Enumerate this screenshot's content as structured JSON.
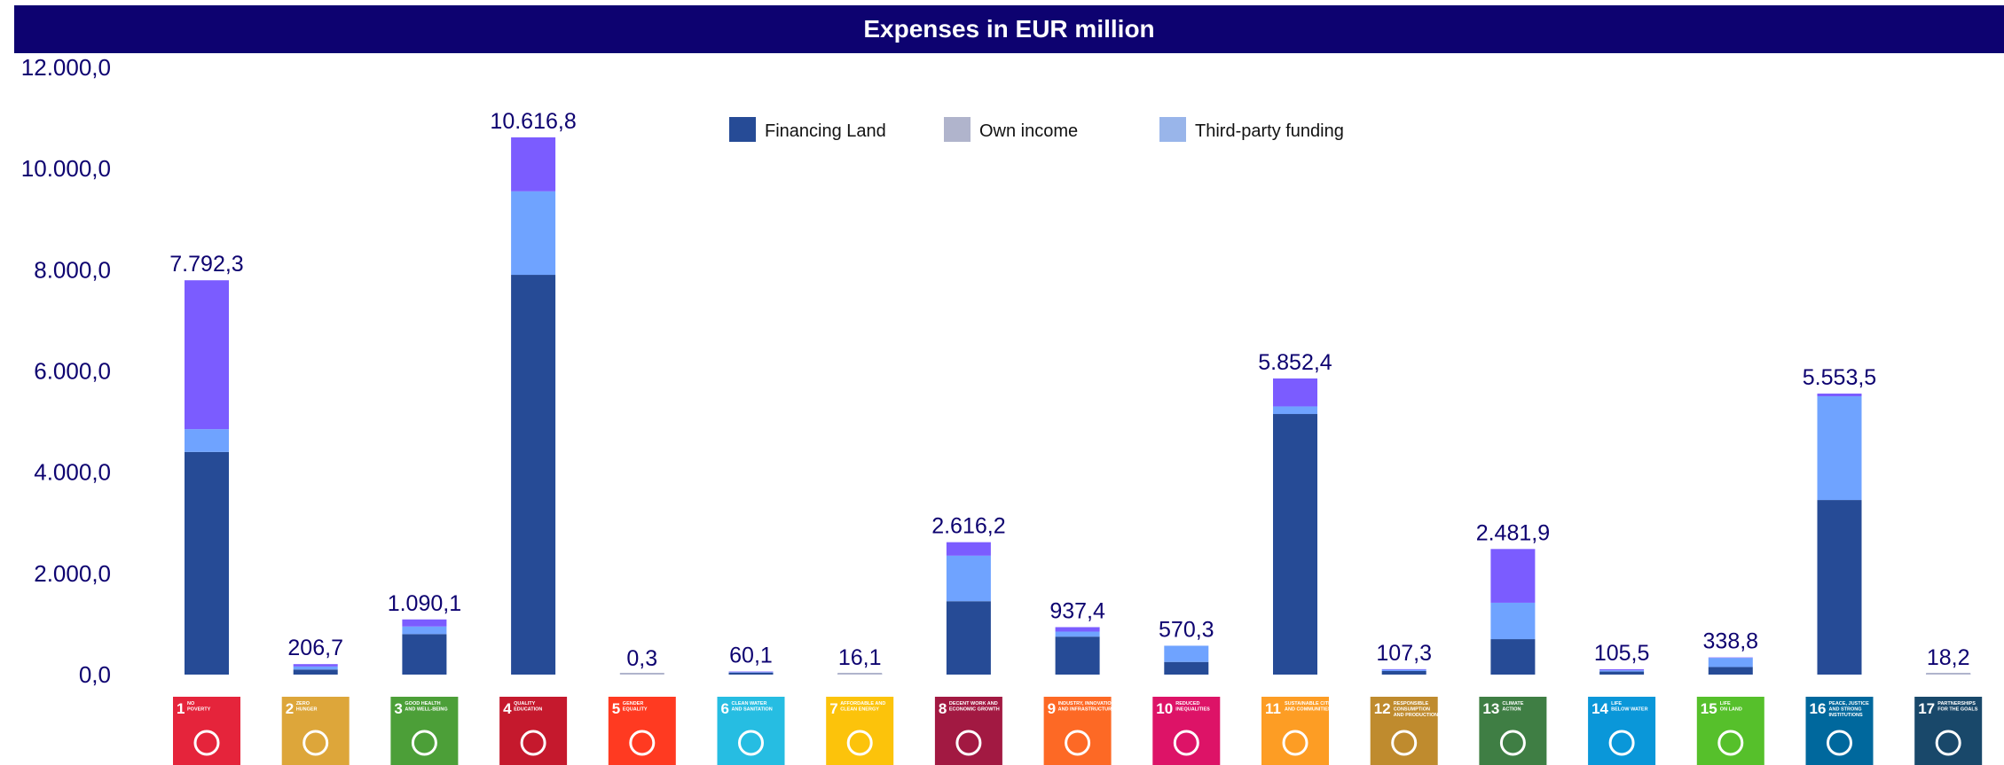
{
  "header": {
    "title": "Expenses in EUR million"
  },
  "chart_data": {
    "type": "bar",
    "stacked": true,
    "title": "Expenses in EUR million",
    "xlabel": "",
    "ylabel": "",
    "ylim": [
      0,
      12000
    ],
    "yticks": [
      0,
      2000,
      4000,
      6000,
      8000,
      10000,
      12000
    ],
    "ytick_labels": [
      "0,0",
      "2.000,0",
      "4.000,0",
      "6.000,0",
      "8.000,0",
      "10.000,0",
      "12.000,0"
    ],
    "grid": false,
    "legend_position": "top-center",
    "categories": [
      "1",
      "2",
      "3",
      "4",
      "5",
      "6",
      "7",
      "8",
      "9",
      "10",
      "11",
      "12",
      "13",
      "14",
      "15",
      "16",
      "17"
    ],
    "category_icons": [
      {
        "number": "1",
        "lines": [
          "NO",
          "POVERTY"
        ],
        "color": "#e5243b"
      },
      {
        "number": "2",
        "lines": [
          "ZERO",
          "HUNGER"
        ],
        "color": "#dda63a"
      },
      {
        "number": "3",
        "lines": [
          "GOOD HEALTH",
          "AND WELL-BEING"
        ],
        "color": "#4c9f38"
      },
      {
        "number": "4",
        "lines": [
          "QUALITY",
          "EDUCATION"
        ],
        "color": "#c5192d"
      },
      {
        "number": "5",
        "lines": [
          "GENDER",
          "EQUALITY"
        ],
        "color": "#ff3a21"
      },
      {
        "number": "6",
        "lines": [
          "CLEAN WATER",
          "AND SANITATION"
        ],
        "color": "#26bde2"
      },
      {
        "number": "7",
        "lines": [
          "AFFORDABLE AND",
          "CLEAN ENERGY"
        ],
        "color": "#fcc30b"
      },
      {
        "number": "8",
        "lines": [
          "DECENT WORK AND",
          "ECONOMIC GROWTH"
        ],
        "color": "#a21942"
      },
      {
        "number": "9",
        "lines": [
          "INDUSTRY, INNOVATION",
          "AND INFRASTRUCTURE"
        ],
        "color": "#fd6925"
      },
      {
        "number": "10",
        "lines": [
          "REDUCED",
          "INEQUALITIES"
        ],
        "color": "#dd1367"
      },
      {
        "number": "11",
        "lines": [
          "SUSTAINABLE CITIES",
          "AND COMMUNITIES"
        ],
        "color": "#fd9d24"
      },
      {
        "number": "12",
        "lines": [
          "RESPONSIBLE",
          "CONSUMPTION",
          "AND PRODUCTION"
        ],
        "color": "#bf8b2e"
      },
      {
        "number": "13",
        "lines": [
          "CLIMATE",
          "ACTION"
        ],
        "color": "#3f7e44"
      },
      {
        "number": "14",
        "lines": [
          "LIFE",
          "BELOW WATER"
        ],
        "color": "#0a97d9"
      },
      {
        "number": "15",
        "lines": [
          "LIFE",
          "ON LAND"
        ],
        "color": "#56c02b"
      },
      {
        "number": "16",
        "lines": [
          "PEACE, JUSTICE",
          "AND STRONG",
          "INSTITUTIONS"
        ],
        "color": "#00689d"
      },
      {
        "number": "17",
        "lines": [
          "PARTNERSHIPS",
          "FOR THE GOALS"
        ],
        "color": "#19486a"
      }
    ],
    "series": [
      {
        "name": "Financing Land",
        "color": "#264b96",
        "values": [
          4400,
          100,
          800,
          7900,
          0.3,
          40,
          10,
          1450,
          750,
          250,
          5150,
          70,
          700,
          60,
          150,
          3450,
          10
        ]
      },
      {
        "name": "Third-party funding",
        "color": "#6fa3ff",
        "values": [
          450,
          60,
          150,
          1650,
          0,
          10,
          4,
          900,
          100,
          320,
          150,
          25,
          720,
          25,
          180,
          2050,
          5
        ]
      },
      {
        "name": "Own income",
        "color": "#7b5cff",
        "values": [
          2942.3,
          46.7,
          140.1,
          1066.8,
          0,
          10.1,
          2.1,
          266.2,
          87.4,
          0.3,
          552.4,
          12.3,
          1061.9,
          20.5,
          8.8,
          53.5,
          3.2
        ]
      }
    ],
    "legend": [
      {
        "label": "Financing Land",
        "color": "#264b96"
      },
      {
        "label": "Own income",
        "color": "#b0b4cc"
      },
      {
        "label": "Third-party funding",
        "color": "#99b5ea"
      }
    ],
    "totals": [
      7792.3,
      206.7,
      1090.1,
      10616.8,
      0.3,
      60.1,
      16.1,
      2616.2,
      937.4,
      570.3,
      5852.4,
      107.3,
      2481.9,
      105.5,
      338.8,
      5553.5,
      18.2
    ],
    "total_labels": [
      "7.792,3",
      "206,7",
      "1.090,1",
      "10.616,8",
      "0,3",
      "60,1",
      "16,1",
      "2.616,2",
      "937,4",
      "570,3",
      "5.852,4",
      "107,3",
      "2.481,9",
      "105,5",
      "338,8",
      "5.553,5",
      "18,2"
    ]
  }
}
